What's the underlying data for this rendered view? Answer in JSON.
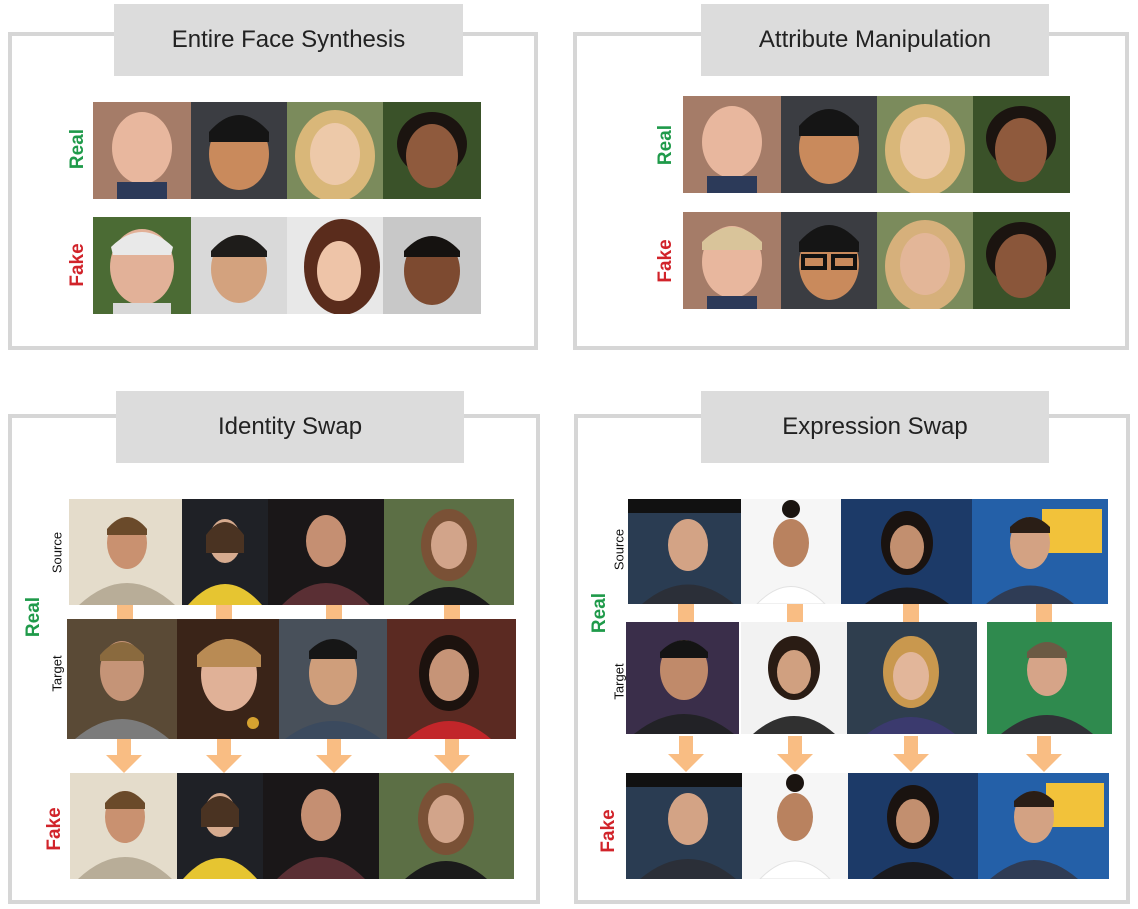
{
  "colors": {
    "real": "#1f9a4a",
    "fake": "#d1232a",
    "arrow": "#f9bd83",
    "panel_border": "#d6d6d6",
    "title_bg": "#dcdcdc"
  },
  "panels": {
    "entire_face": {
      "title": "Entire Face Synthesis",
      "real_label": "Real",
      "fake_label": "Fake"
    },
    "attribute": {
      "title": "Attribute Manipulation",
      "real_label": "Real",
      "fake_label": "Fake"
    },
    "identity": {
      "title": "Identity Swap",
      "real_label": "Real",
      "fake_label": "Fake",
      "source_label": "Source",
      "target_label": "Target"
    },
    "expression": {
      "title": "Expression Swap",
      "real_label": "Real",
      "fake_label": "Fake",
      "source_label": "Source",
      "target_label": "Target"
    }
  },
  "photos": {
    "entire_face_real": [
      "face-photo",
      "face-photo",
      "face-photo",
      "face-photo"
    ],
    "entire_face_fake": [
      "face-photo",
      "face-photo",
      "face-photo",
      "face-photo"
    ],
    "attribute_real": [
      "face-photo",
      "face-photo",
      "face-photo",
      "face-photo"
    ],
    "attribute_fake": [
      "face-photo",
      "face-photo",
      "face-photo",
      "face-photo"
    ],
    "identity_source": [
      "video-frame",
      "video-frame",
      "video-frame",
      "video-frame"
    ],
    "identity_target": [
      "video-frame",
      "video-frame",
      "video-frame",
      "video-frame"
    ],
    "identity_fake": [
      "video-frame",
      "video-frame",
      "video-frame",
      "video-frame"
    ],
    "expression_source": [
      "video-frame",
      "video-frame",
      "video-frame",
      "video-frame"
    ],
    "expression_target": [
      "video-frame",
      "video-frame",
      "video-frame",
      "video-frame"
    ],
    "expression_fake": [
      "video-frame",
      "video-frame",
      "video-frame",
      "video-frame"
    ]
  }
}
